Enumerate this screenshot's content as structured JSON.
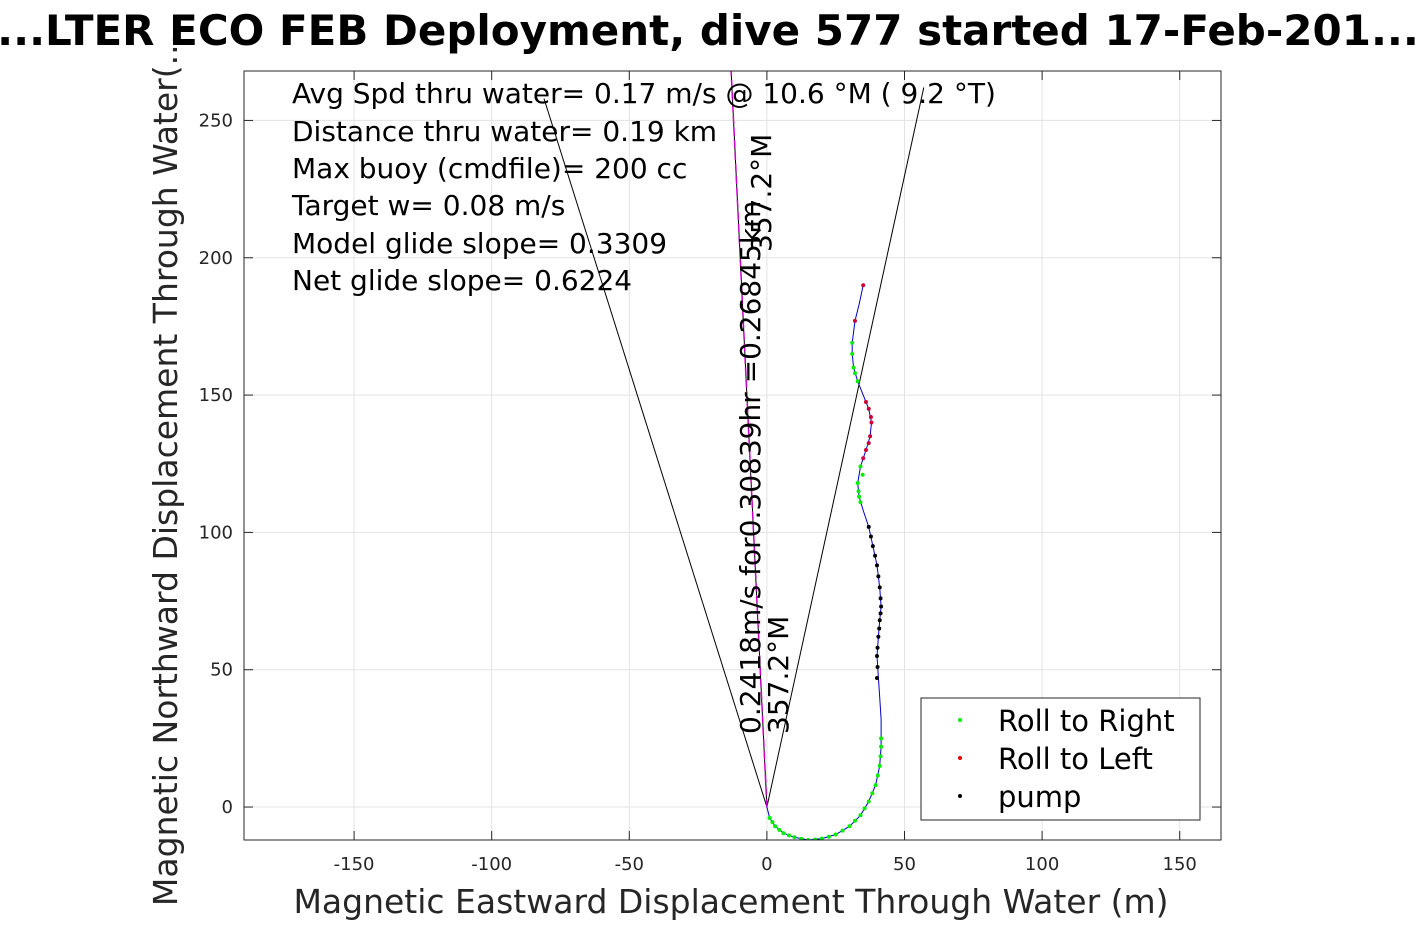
{
  "chart_data": {
    "type": "scatter",
    "title": "...LTER ECO FEB Deployment, dive 577 started 17-Feb-201...",
    "xlabel": "Magnetic Eastward Displacement Through Water (m)",
    "ylabel": "Magnetic Northward Displacement Through Water(...",
    "xlim": [
      -190,
      165
    ],
    "ylim": [
      -12,
      268
    ],
    "xticks": [
      -150,
      -100,
      -50,
      0,
      50,
      100,
      150
    ],
    "yticks": [
      0,
      50,
      100,
      150,
      200,
      250
    ],
    "xtick_labels": [
      "-150",
      "-100",
      "-50",
      "0",
      "50",
      "100",
      "150"
    ],
    "ytick_labels": [
      "0",
      "50",
      "100",
      "150",
      "200",
      "250"
    ],
    "grid": true,
    "info_lines": [
      "Avg Spd thru water=  0.17 m/s @  10.6 °M (  9.2 °T)",
      "Distance thru water=  0.19 km",
      "Max buoy (cmdfile)= 200 cc",
      "Target w= 0.08 m/s",
      "Model glide slope= 0.3309",
      "Net glide slope= 0.6224"
    ],
    "rotated_labels": {
      "upper_heading": "357.2°M",
      "current_text": "0.2418m/s for0.30839hr =0.26845km",
      "lower_heading": "357.2°M"
    },
    "legend": {
      "position": "bottom-right",
      "entries": [
        {
          "name": "Roll to Right",
          "color": "#00ee00"
        },
        {
          "name": "Roll to Left",
          "color": "#ee0000"
        },
        {
          "name": "pump",
          "color": "#000000"
        }
      ]
    },
    "track": {
      "color": "#0000cc",
      "points": [
        [
          0,
          0
        ],
        [
          1,
          -4
        ],
        [
          3,
          -7
        ],
        [
          6,
          -9.5
        ],
        [
          10,
          -11
        ],
        [
          15,
          -12
        ],
        [
          20,
          -11.5
        ],
        [
          25,
          -10
        ],
        [
          30,
          -7
        ],
        [
          34,
          -3
        ],
        [
          37,
          2
        ],
        [
          39.5,
          8
        ],
        [
          41,
          15
        ],
        [
          41.5,
          22
        ],
        [
          41.5,
          25
        ],
        [
          41.5,
          32
        ],
        [
          41,
          40
        ],
        [
          40.5,
          47
        ],
        [
          40,
          55
        ],
        [
          40.5,
          62
        ],
        [
          41,
          68
        ],
        [
          41.5,
          73
        ],
        [
          41,
          80
        ],
        [
          40,
          88
        ],
        [
          38.5,
          95
        ],
        [
          37,
          102
        ],
        [
          35,
          108
        ],
        [
          33.5,
          113
        ],
        [
          33,
          118
        ],
        [
          34,
          124
        ],
        [
          36,
          130
        ],
        [
          37.5,
          135
        ],
        [
          38,
          140
        ],
        [
          37,
          145
        ],
        [
          35,
          150
        ],
        [
          33,
          155
        ],
        [
          31.5,
          160
        ],
        [
          31,
          165
        ],
        [
          31,
          169
        ],
        [
          31.5,
          173
        ],
        [
          32,
          177
        ],
        [
          33.5,
          183
        ],
        [
          35,
          190
        ]
      ]
    },
    "series": [
      {
        "name": "Roll to Right",
        "color": "#00ee00",
        "points": [
          [
            1,
            -4
          ],
          [
            2,
            -5.5
          ],
          [
            3,
            -7
          ],
          [
            4.5,
            -8.3
          ],
          [
            6,
            -9.5
          ],
          [
            8,
            -10.3
          ],
          [
            10,
            -11
          ],
          [
            12.5,
            -11.6
          ],
          [
            15,
            -12
          ],
          [
            17.5,
            -11.8
          ],
          [
            20,
            -11.5
          ],
          [
            22.5,
            -10.8
          ],
          [
            25,
            -10
          ],
          [
            27.5,
            -8.6
          ],
          [
            30,
            -7
          ],
          [
            32,
            -5
          ],
          [
            34,
            -3
          ],
          [
            35.5,
            -0.5
          ],
          [
            37,
            2
          ],
          [
            38.3,
            5
          ],
          [
            39.5,
            8
          ],
          [
            40.3,
            11.5
          ],
          [
            41,
            15
          ],
          [
            41.3,
            18.5
          ],
          [
            41.5,
            22
          ],
          [
            41.5,
            25
          ],
          [
            33,
            118
          ],
          [
            33.3,
            115
          ],
          [
            33.5,
            113
          ],
          [
            34,
            111
          ],
          [
            34,
            124
          ],
          [
            34.8,
            121
          ],
          [
            31.5,
            160
          ],
          [
            31,
            165
          ],
          [
            31,
            169
          ],
          [
            32,
            158
          ],
          [
            33,
            155
          ]
        ]
      },
      {
        "name": "Roll to Left",
        "color": "#cc0033",
        "points": [
          [
            38,
            140
          ],
          [
            37.8,
            142
          ],
          [
            37.5,
            135
          ],
          [
            37,
            132.5
          ],
          [
            36,
            130
          ],
          [
            35,
            127
          ],
          [
            37,
            145
          ],
          [
            36,
            147.5
          ],
          [
            32,
            177
          ],
          [
            35,
            190
          ]
        ]
      },
      {
        "name": "pump",
        "color": "#000000",
        "points": [
          [
            40,
            55
          ],
          [
            40.2,
            58
          ],
          [
            40.5,
            62
          ],
          [
            40.8,
            65
          ],
          [
            41,
            68
          ],
          [
            41.3,
            70.5
          ],
          [
            41.5,
            73
          ],
          [
            41.3,
            76
          ],
          [
            41,
            80
          ],
          [
            40.5,
            84
          ],
          [
            40,
            88
          ],
          [
            39.3,
            91.5
          ],
          [
            38.5,
            95
          ],
          [
            37.8,
            98.5
          ],
          [
            37,
            102
          ],
          [
            40.2,
            51
          ],
          [
            40,
            47
          ]
        ]
      }
    ],
    "lines": [
      {
        "from": [
          0,
          0
        ],
        "to": [
          -81,
          258
        ],
        "color": "#000000"
      },
      {
        "from": [
          0,
          0
        ],
        "to": [
          57,
          262
        ],
        "color": "#000000"
      },
      {
        "from": [
          0,
          0
        ],
        "to": [
          -13,
          268
        ],
        "color": "#000000"
      },
      {
        "from": [
          0,
          0
        ],
        "to": [
          -13,
          268
        ],
        "color": "#cc00cc",
        "dashed": true
      }
    ]
  }
}
